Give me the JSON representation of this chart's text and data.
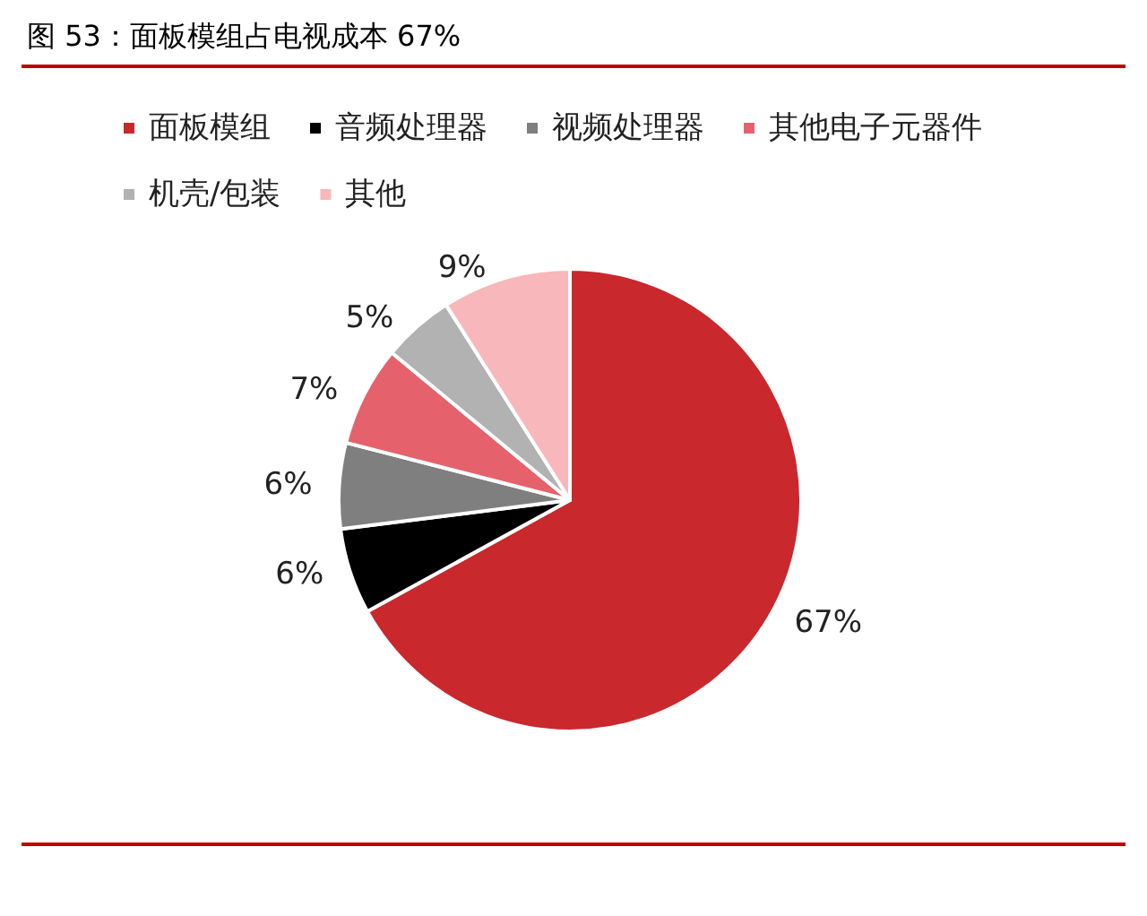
{
  "chart_data": {
    "type": "pie",
    "title": "图 53：面板模组占电视成本 67%",
    "categories": [
      "面板模组",
      "音频处理器",
      "视频处理器",
      "其他电子元器件",
      "机壳/包装",
      "其他"
    ],
    "values": [
      67,
      6,
      6,
      7,
      5,
      9
    ],
    "colors": [
      "#c9282d",
      "#000000",
      "#7f7f7f",
      "#e5626d",
      "#b2b2b2",
      "#f7b7bb"
    ],
    "value_labels": [
      "67%",
      "6%",
      "6%",
      "7%",
      "5%",
      "9%"
    ],
    "legend": "top"
  }
}
